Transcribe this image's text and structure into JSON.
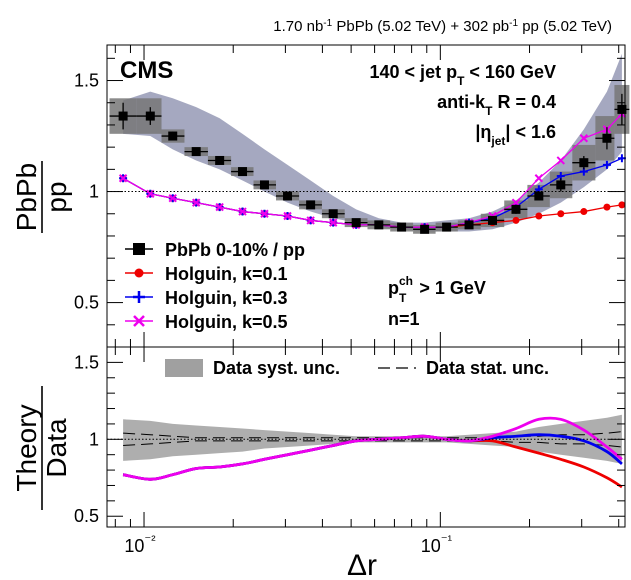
{
  "header": {
    "lumi_text": "1.70 nb⁻¹ PbPb (5.02 TeV) + 302 pb⁻¹ pp (5.02 TeV)",
    "lumi_pbpb": "1.70 nb",
    "lumi_mid": " PbPb (5.02 TeV) + 302 pb",
    "lumi_end": " pp (5.02 TeV)",
    "inv": "-1"
  },
  "labels": {
    "experiment": "CMS",
    "jet_pt_pre": "140 < jet p",
    "jet_pt_sub": "T",
    "jet_pt_post": " < 160 GeV",
    "algo_pre": "anti-k",
    "algo_sub": "T",
    "algo_post": " R = 0.4",
    "eta_pre": "|η",
    "eta_sub": "jet",
    "eta_post": "| < 1.6",
    "track_p": "p",
    "track_sup": "ch",
    "track_sub": "T",
    "track_post": " > 1 GeV",
    "n_label": "n=1"
  },
  "chart_data": [
    {
      "type": "scatter",
      "panel": "top",
      "ylabel_num": "PbPb",
      "ylabel_den": "pp",
      "xscale": "log",
      "xlim": [
        0.0075,
        0.42
      ],
      "ylim": [
        0.3,
        1.66
      ],
      "yticks": [
        "0.5",
        "1",
        "1.5"
      ],
      "reference_line": 1.0,
      "x": [
        0.0085,
        0.0105,
        0.0125,
        0.015,
        0.018,
        0.0215,
        0.0255,
        0.0305,
        0.0365,
        0.0435,
        0.052,
        0.062,
        0.074,
        0.0885,
        0.105,
        0.125,
        0.15,
        0.18,
        0.215,
        0.255,
        0.305,
        0.365,
        0.41
      ],
      "series": [
        {
          "name": "PbPb 0-10% / pp",
          "color": "#000000",
          "marker": "square",
          "values": [
            1.34,
            1.34,
            1.25,
            1.18,
            1.14,
            1.09,
            1.03,
            0.98,
            0.94,
            0.9,
            0.86,
            0.85,
            0.84,
            0.83,
            0.84,
            0.85,
            0.87,
            0.92,
            0.98,
            1.03,
            1.13,
            1.24,
            1.37
          ],
          "syst_band_halfwidth": [
            0.08,
            0.08,
            0.03,
            0.02,
            0.02,
            0.02,
            0.02,
            0.02,
            0.02,
            0.02,
            0.02,
            0.02,
            0.02,
            0.02,
            0.02,
            0.02,
            0.03,
            0.04,
            0.05,
            0.06,
            0.08,
            0.1,
            0.11
          ],
          "stat_err": [
            0.06,
            0.04,
            0.02,
            0.01,
            0.01,
            0.01,
            0.01,
            0.01,
            0.01,
            0.01,
            0.01,
            0.01,
            0.01,
            0.01,
            0.01,
            0.01,
            0.01,
            0.02,
            0.02,
            0.03,
            0.03,
            0.05,
            0.07
          ],
          "band_upper": [
            1.41,
            1.45,
            1.42,
            1.38,
            1.33,
            1.26,
            1.19,
            1.12,
            1.05,
            0.98,
            0.92,
            0.88,
            0.86,
            0.86,
            0.87,
            0.88,
            0.91,
            0.96,
            1.04,
            1.14,
            1.28,
            1.45,
            1.62
          ],
          "band_lower": [
            1.26,
            1.25,
            1.19,
            1.14,
            1.1,
            1.05,
            1.0,
            0.95,
            0.91,
            0.88,
            0.86,
            0.84,
            0.83,
            0.82,
            0.82,
            0.82,
            0.83,
            0.86,
            0.9,
            0.95,
            1.02,
            1.1,
            1.18
          ]
        },
        {
          "name": "Holguin, k=0.1",
          "color": "#ee0000",
          "marker": "circle",
          "values": [
            1.06,
            0.99,
            0.97,
            0.95,
            0.93,
            0.91,
            0.9,
            0.89,
            0.87,
            0.86,
            0.85,
            0.85,
            0.84,
            0.84,
            0.84,
            0.85,
            0.86,
            0.87,
            0.89,
            0.9,
            0.91,
            0.93,
            0.94
          ]
        },
        {
          "name": "Holguin, k=0.3",
          "color": "#0000ee",
          "marker": "cross",
          "values": [
            1.06,
            0.99,
            0.97,
            0.95,
            0.93,
            0.91,
            0.9,
            0.89,
            0.87,
            0.86,
            0.85,
            0.85,
            0.84,
            0.84,
            0.84,
            0.86,
            0.88,
            0.93,
            1.01,
            1.07,
            1.09,
            1.12,
            1.15
          ]
        },
        {
          "name": "Holguin, k=0.5",
          "color": "#ee00ee",
          "marker": "star",
          "values": [
            1.06,
            0.99,
            0.97,
            0.95,
            0.93,
            0.91,
            0.9,
            0.89,
            0.87,
            0.86,
            0.85,
            0.85,
            0.84,
            0.84,
            0.84,
            0.86,
            0.89,
            0.95,
            1.06,
            1.14,
            1.24,
            1.28,
            1.35
          ]
        }
      ],
      "legend": [
        {
          "label": "PbPb 0-10% / pp",
          "marker": "square",
          "color": "#000000"
        },
        {
          "label": "Holguin, k=0.1",
          "marker": "circle",
          "color": "#ee0000"
        },
        {
          "label": "Holguin, k=0.3",
          "marker": "cross",
          "color": "#0000ee"
        },
        {
          "label": "Holguin, k=0.5",
          "marker": "star",
          "color": "#ee00ee"
        }
      ]
    },
    {
      "type": "line",
      "panel": "bottom",
      "ylabel_num": "Theory",
      "ylabel_den": "Data",
      "xlabel": "Δr",
      "xscale": "log",
      "xlim": [
        0.0075,
        0.42
      ],
      "ylim": [
        0.43,
        1.6
      ],
      "yticks": [
        "0.5",
        "1",
        "1.5"
      ],
      "xticks": [
        {
          "value": 0.01,
          "label": "10⁻²"
        },
        {
          "value": 0.1,
          "label": "10⁻¹"
        }
      ],
      "reference_line": 1.0,
      "x": [
        0.0085,
        0.0105,
        0.0125,
        0.015,
        0.018,
        0.0215,
        0.0255,
        0.0305,
        0.0365,
        0.0435,
        0.052,
        0.062,
        0.074,
        0.0885,
        0.105,
        0.125,
        0.15,
        0.18,
        0.215,
        0.255,
        0.305,
        0.365,
        0.41
      ],
      "band": {
        "name": "Data syst. unc.",
        "upper": [
          1.13,
          1.12,
          1.1,
          1.09,
          1.08,
          1.07,
          1.06,
          1.05,
          1.04,
          1.03,
          1.02,
          1.02,
          1.02,
          1.02,
          1.02,
          1.03,
          1.04,
          1.05,
          1.08,
          1.1,
          1.12,
          1.14,
          1.16
        ],
        "lower": [
          0.86,
          0.87,
          0.89,
          0.9,
          0.91,
          0.92,
          0.94,
          0.95,
          0.96,
          0.97,
          0.98,
          0.98,
          0.98,
          0.98,
          0.98,
          0.97,
          0.96,
          0.95,
          0.92,
          0.9,
          0.88,
          0.86,
          0.84
        ]
      },
      "stat": {
        "name": "Data stat. unc.",
        "upper": [
          1.04,
          1.03,
          1.02,
          1.01,
          1.01,
          1.01,
          1.01,
          1.01,
          1.01,
          1.01,
          1.01,
          1.01,
          1.01,
          1.01,
          1.01,
          1.01,
          1.01,
          1.02,
          1.02,
          1.03,
          1.03,
          1.04,
          1.05
        ],
        "lower": [
          0.96,
          0.97,
          0.98,
          0.99,
          0.99,
          0.99,
          0.99,
          0.99,
          0.99,
          0.99,
          0.99,
          0.99,
          0.99,
          0.99,
          0.99,
          0.99,
          0.99,
          0.98,
          0.98,
          0.97,
          0.97,
          0.96,
          0.95
        ]
      },
      "series": [
        {
          "name": "Holguin, k=0.1",
          "color": "#ee0000",
          "values": [
            0.77,
            0.74,
            0.77,
            0.81,
            0.82,
            0.84,
            0.87,
            0.9,
            0.93,
            0.96,
            0.99,
            1.0,
            1.01,
            1.02,
            1.0,
            0.99,
            0.99,
            0.95,
            0.91,
            0.87,
            0.82,
            0.75,
            0.69
          ]
        },
        {
          "name": "Holguin, k=0.3",
          "color": "#0000ee",
          "values": [
            0.77,
            0.74,
            0.77,
            0.81,
            0.82,
            0.84,
            0.87,
            0.9,
            0.93,
            0.96,
            0.99,
            1.0,
            1.01,
            1.02,
            1.0,
            0.99,
            1.01,
            1.02,
            1.03,
            1.02,
            0.99,
            0.92,
            0.84
          ]
        },
        {
          "name": "Holguin, k=0.5",
          "color": "#ee00ee",
          "values": [
            0.77,
            0.74,
            0.77,
            0.81,
            0.82,
            0.84,
            0.87,
            0.9,
            0.93,
            0.96,
            0.99,
            1.0,
            1.01,
            1.02,
            1.0,
            0.99,
            1.02,
            1.07,
            1.13,
            1.13,
            1.06,
            0.95,
            0.87
          ]
        }
      ],
      "legend": [
        {
          "label": "Data syst. unc.",
          "marker": "box",
          "color": "#a0a0a0"
        },
        {
          "label": "Data stat. unc.",
          "marker": "dash",
          "color": "#000000"
        }
      ]
    }
  ]
}
